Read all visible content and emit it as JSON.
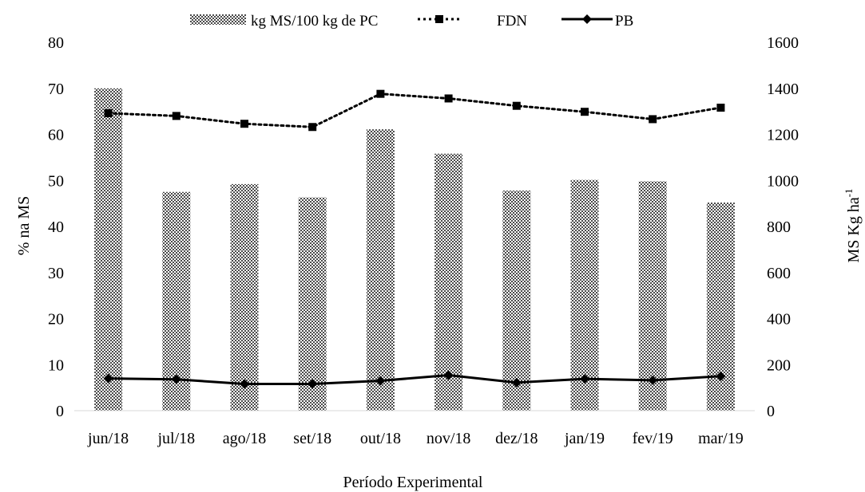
{
  "chart_data": {
    "type": "bar",
    "categories": [
      "jun/18",
      "jul/18",
      "ago/18",
      "set/18",
      "out/18",
      "nov/18",
      "dez/18",
      "jan/19",
      "fev/19",
      "mar/19"
    ],
    "xlabel": "Período Experimental",
    "ylabel_left": "% na MS",
    "ylabel_right_base": "MS Kg ha",
    "ylabel_right_sup": "-1",
    "ylim_left": [
      0,
      80
    ],
    "yticks_left": [
      "0",
      "10",
      "20",
      "30",
      "40",
      "50",
      "60",
      "70",
      "80"
    ],
    "ylim_right": [
      0,
      1600
    ],
    "yticks_right": [
      "0",
      "200",
      "400",
      "600",
      "800",
      "1000",
      "1200",
      "1400",
      "1600"
    ],
    "legend_position": "top-center",
    "grid": false,
    "series": [
      {
        "name": "kg MS/100 kg de PC",
        "type": "bar",
        "axis": "left",
        "pattern": "crosshatch-dots",
        "values": [
          70,
          47.5,
          49.2,
          46.3,
          61.1,
          55.8,
          47.8,
          50.1,
          49.8,
          45.2
        ]
      },
      {
        "name": "FDN",
        "type": "line",
        "axis": "left",
        "style": "dotted",
        "marker": "square",
        "values": [
          64.6,
          64.0,
          62.3,
          61.6,
          68.8,
          67.8,
          66.2,
          64.9,
          63.3,
          65.8
        ]
      },
      {
        "name": "PB",
        "type": "line",
        "axis": "left",
        "style": "solid",
        "marker": "diamond",
        "values": [
          7.0,
          6.8,
          5.8,
          5.8,
          6.5,
          7.7,
          6.1,
          6.9,
          6.6,
          7.5
        ]
      }
    ]
  }
}
